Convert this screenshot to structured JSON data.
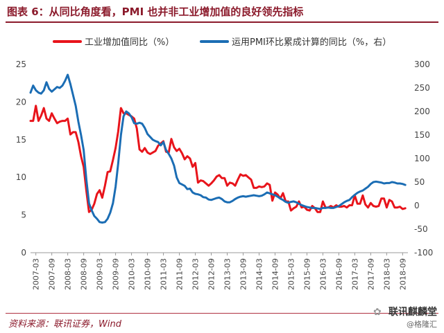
{
  "title": "图表 6：从同比角度看，PMI 也并非工业增加值的良好领先指标",
  "source": "资料来源：联讯证券，Wind",
  "watermark": {
    "main": "联讯麒麟堂",
    "sub": "@格隆汇"
  },
  "colors": {
    "title": "#8b1a2b",
    "series_red": "#e8141b",
    "series_blue": "#1b6db4"
  },
  "chart_data": {
    "type": "line",
    "title": "",
    "legend_position": "top",
    "grid": false,
    "x_ticks": [
      "2007-03",
      "2007-09",
      "2008-03",
      "2008-09",
      "2009-03",
      "2009-09",
      "2010-03",
      "2010-09",
      "2011-03",
      "2011-09",
      "2012-03",
      "2012-09",
      "2013-03",
      "2013-09",
      "2014-03",
      "2014-09",
      "2015-03",
      "2015-09",
      "2016-03",
      "2016-09",
      "2017-03",
      "2017-09",
      "2018-03",
      "2018-09"
    ],
    "y_left": {
      "range": [
        0,
        25
      ],
      "ticks": [
        "0",
        "5",
        "10",
        "15",
        "20",
        "25"
      ]
    },
    "y_right": {
      "range": [
        -100,
        300
      ],
      "ticks": [
        "-100",
        "-50",
        "0",
        "50",
        "100",
        "150",
        "200",
        "250",
        "300"
      ]
    },
    "series": [
      {
        "name": "工业增加值同比（%）",
        "axis": "left",
        "color": "#e8141b",
        "points": [
          [
            "2007-01",
            17.5
          ],
          [
            "2007-02",
            17.5
          ],
          [
            "2007-03",
            19.5
          ],
          [
            "2007-04",
            17.5
          ],
          [
            "2007-05",
            18.2
          ],
          [
            "2007-06",
            19.2
          ],
          [
            "2007-07",
            17.8
          ],
          [
            "2007-08",
            17.5
          ],
          [
            "2007-09",
            18.5
          ],
          [
            "2007-10",
            17.8
          ],
          [
            "2007-11",
            17.2
          ],
          [
            "2007-12",
            17.4
          ],
          [
            "2008-01",
            17.5
          ],
          [
            "2008-02",
            17.5
          ],
          [
            "2008-03",
            17.8
          ],
          [
            "2008-04",
            15.7
          ],
          [
            "2008-05",
            16.0
          ],
          [
            "2008-06",
            16.0
          ],
          [
            "2008-07",
            14.7
          ],
          [
            "2008-08",
            12.8
          ],
          [
            "2008-09",
            11.4
          ],
          [
            "2008-10",
            8.2
          ],
          [
            "2008-11",
            5.4
          ],
          [
            "2008-12",
            5.7
          ],
          [
            "2009-01",
            6.5
          ],
          [
            "2009-02",
            7.8
          ],
          [
            "2009-03",
            8.3
          ],
          [
            "2009-04",
            7.3
          ],
          [
            "2009-05",
            8.9
          ],
          [
            "2009-06",
            10.7
          ],
          [
            "2009-07",
            10.8
          ],
          [
            "2009-08",
            12.3
          ],
          [
            "2009-09",
            13.9
          ],
          [
            "2009-10",
            16.1
          ],
          [
            "2009-11",
            19.2
          ],
          [
            "2009-12",
            18.5
          ],
          [
            "2010-01",
            18.5
          ],
          [
            "2010-02",
            18.3
          ],
          [
            "2010-03",
            18.1
          ],
          [
            "2010-04",
            17.8
          ],
          [
            "2010-05",
            16.5
          ],
          [
            "2010-06",
            13.7
          ],
          [
            "2010-07",
            13.4
          ],
          [
            "2010-08",
            13.9
          ],
          [
            "2010-09",
            13.3
          ],
          [
            "2010-10",
            13.1
          ],
          [
            "2010-11",
            13.3
          ],
          [
            "2010-12",
            13.5
          ],
          [
            "2011-01",
            14.2
          ],
          [
            "2011-02",
            14.5
          ],
          [
            "2011-03",
            14.8
          ],
          [
            "2011-04",
            13.4
          ],
          [
            "2011-05",
            13.3
          ],
          [
            "2011-06",
            15.1
          ],
          [
            "2011-07",
            14.0
          ],
          [
            "2011-08",
            13.5
          ],
          [
            "2011-09",
            13.8
          ],
          [
            "2011-10",
            13.2
          ],
          [
            "2011-11",
            12.4
          ],
          [
            "2011-12",
            12.8
          ],
          [
            "2012-01",
            12.5
          ],
          [
            "2012-02",
            11.4
          ],
          [
            "2012-03",
            11.9
          ],
          [
            "2012-04",
            9.3
          ],
          [
            "2012-05",
            9.6
          ],
          [
            "2012-06",
            9.5
          ],
          [
            "2012-07",
            9.2
          ],
          [
            "2012-08",
            8.9
          ],
          [
            "2012-09",
            9.2
          ],
          [
            "2012-10",
            9.6
          ],
          [
            "2012-11",
            10.1
          ],
          [
            "2012-12",
            10.3
          ],
          [
            "2013-01",
            9.9
          ],
          [
            "2013-02",
            9.9
          ],
          [
            "2013-03",
            8.9
          ],
          [
            "2013-04",
            9.3
          ],
          [
            "2013-05",
            9.2
          ],
          [
            "2013-06",
            8.9
          ],
          [
            "2013-07",
            9.7
          ],
          [
            "2013-08",
            10.4
          ],
          [
            "2013-09",
            10.2
          ],
          [
            "2013-10",
            10.3
          ],
          [
            "2013-11",
            10.0
          ],
          [
            "2013-12",
            9.7
          ],
          [
            "2014-01",
            8.6
          ],
          [
            "2014-02",
            8.6
          ],
          [
            "2014-03",
            8.8
          ],
          [
            "2014-04",
            8.7
          ],
          [
            "2014-05",
            8.8
          ],
          [
            "2014-06",
            9.2
          ],
          [
            "2014-07",
            9.0
          ],
          [
            "2014-08",
            6.9
          ],
          [
            "2014-09",
            8.0
          ],
          [
            "2014-10",
            7.7
          ],
          [
            "2014-11",
            7.2
          ],
          [
            "2014-12",
            7.9
          ],
          [
            "2015-01",
            6.8
          ],
          [
            "2015-02",
            6.8
          ],
          [
            "2015-03",
            5.6
          ],
          [
            "2015-04",
            5.9
          ],
          [
            "2015-05",
            6.1
          ],
          [
            "2015-06",
            6.8
          ],
          [
            "2015-07",
            6.0
          ],
          [
            "2015-08",
            6.1
          ],
          [
            "2015-09",
            5.7
          ],
          [
            "2015-10",
            5.6
          ],
          [
            "2015-11",
            6.2
          ],
          [
            "2015-12",
            5.9
          ],
          [
            "2016-01",
            5.4
          ],
          [
            "2016-02",
            5.4
          ],
          [
            "2016-03",
            6.8
          ],
          [
            "2016-04",
            6.0
          ],
          [
            "2016-05",
            6.0
          ],
          [
            "2016-06",
            6.2
          ],
          [
            "2016-07",
            6.0
          ],
          [
            "2016-08",
            6.3
          ],
          [
            "2016-09",
            6.1
          ],
          [
            "2016-10",
            6.1
          ],
          [
            "2016-11",
            6.2
          ],
          [
            "2016-12",
            6.0
          ],
          [
            "2017-01",
            6.3
          ],
          [
            "2017-02",
            6.3
          ],
          [
            "2017-03",
            7.6
          ],
          [
            "2017-04",
            6.5
          ],
          [
            "2017-05",
            6.5
          ],
          [
            "2017-06",
            7.6
          ],
          [
            "2017-07",
            6.4
          ],
          [
            "2017-08",
            6.0
          ],
          [
            "2017-09",
            6.6
          ],
          [
            "2017-10",
            6.2
          ],
          [
            "2017-11",
            6.1
          ],
          [
            "2017-12",
            6.2
          ],
          [
            "2018-01",
            7.2
          ],
          [
            "2018-02",
            7.2
          ],
          [
            "2018-03",
            6.0
          ],
          [
            "2018-04",
            7.0
          ],
          [
            "2018-05",
            6.8
          ],
          [
            "2018-06",
            6.0
          ],
          [
            "2018-07",
            6.0
          ],
          [
            "2018-08",
            6.1
          ],
          [
            "2018-09",
            5.8
          ],
          [
            "2018-10",
            5.9
          ]
        ]
      },
      {
        "name": "运用PMI环比累成计算的同比（%，右）",
        "axis": "right",
        "color": "#1b6db4",
        "points": [
          [
            "2007-01",
            240
          ],
          [
            "2007-02",
            255
          ],
          [
            "2007-03",
            245
          ],
          [
            "2007-04",
            240
          ],
          [
            "2007-05",
            238
          ],
          [
            "2007-06",
            245
          ],
          [
            "2007-07",
            262
          ],
          [
            "2007-08",
            248
          ],
          [
            "2007-09",
            242
          ],
          [
            "2007-10",
            247
          ],
          [
            "2007-11",
            252
          ],
          [
            "2007-12",
            250
          ],
          [
            "2008-01",
            255
          ],
          [
            "2008-02",
            265
          ],
          [
            "2008-03",
            278
          ],
          [
            "2008-04",
            258
          ],
          [
            "2008-05",
            235
          ],
          [
            "2008-06",
            212
          ],
          [
            "2008-07",
            178
          ],
          [
            "2008-08",
            150
          ],
          [
            "2008-09",
            118
          ],
          [
            "2008-10",
            55
          ],
          [
            "2008-11",
            5
          ],
          [
            "2008-12",
            -10
          ],
          [
            "2009-01",
            -22
          ],
          [
            "2009-02",
            -28
          ],
          [
            "2009-03",
            -35
          ],
          [
            "2009-04",
            -36
          ],
          [
            "2009-05",
            -35
          ],
          [
            "2009-06",
            -28
          ],
          [
            "2009-07",
            -15
          ],
          [
            "2009-08",
            5
          ],
          [
            "2009-09",
            40
          ],
          [
            "2009-10",
            90
          ],
          [
            "2009-11",
            150
          ],
          [
            "2009-12",
            190
          ],
          [
            "2010-01",
            200
          ],
          [
            "2010-02",
            196
          ],
          [
            "2010-03",
            188
          ],
          [
            "2010-04",
            175
          ],
          [
            "2010-05",
            174
          ],
          [
            "2010-06",
            176
          ],
          [
            "2010-07",
            174
          ],
          [
            "2010-08",
            165
          ],
          [
            "2010-09",
            152
          ],
          [
            "2010-10",
            146
          ],
          [
            "2010-11",
            140
          ],
          [
            "2010-12",
            137
          ],
          [
            "2011-01",
            135
          ],
          [
            "2011-02",
            128
          ],
          [
            "2011-03",
            135
          ],
          [
            "2011-04",
            118
          ],
          [
            "2011-05",
            110
          ],
          [
            "2011-06",
            100
          ],
          [
            "2011-07",
            85
          ],
          [
            "2011-08",
            60
          ],
          [
            "2011-09",
            48
          ],
          [
            "2011-10",
            45
          ],
          [
            "2011-11",
            42
          ],
          [
            "2011-12",
            35
          ],
          [
            "2012-01",
            36
          ],
          [
            "2012-02",
            28
          ],
          [
            "2012-03",
            25
          ],
          [
            "2012-04",
            24
          ],
          [
            "2012-05",
            22
          ],
          [
            "2012-06",
            18
          ],
          [
            "2012-07",
            17
          ],
          [
            "2012-08",
            13
          ],
          [
            "2012-09",
            12
          ],
          [
            "2012-10",
            14
          ],
          [
            "2012-11",
            16
          ],
          [
            "2012-12",
            17
          ],
          [
            "2013-01",
            14
          ],
          [
            "2013-02",
            9
          ],
          [
            "2013-03",
            7
          ],
          [
            "2013-04",
            7
          ],
          [
            "2013-05",
            10
          ],
          [
            "2013-06",
            14
          ],
          [
            "2013-07",
            17
          ],
          [
            "2013-08",
            19
          ],
          [
            "2013-09",
            20
          ],
          [
            "2013-10",
            19
          ],
          [
            "2013-11",
            20
          ],
          [
            "2013-12",
            21
          ],
          [
            "2014-01",
            22
          ],
          [
            "2014-02",
            21
          ],
          [
            "2014-03",
            20
          ],
          [
            "2014-04",
            21
          ],
          [
            "2014-05",
            24
          ],
          [
            "2014-06",
            28
          ],
          [
            "2014-07",
            26
          ],
          [
            "2014-08",
            24
          ],
          [
            "2014-09",
            22
          ],
          [
            "2014-10",
            19
          ],
          [
            "2014-11",
            15
          ],
          [
            "2014-12",
            12
          ],
          [
            "2015-01",
            8
          ],
          [
            "2015-02",
            6
          ],
          [
            "2015-03",
            8
          ],
          [
            "2015-04",
            9
          ],
          [
            "2015-05",
            7
          ],
          [
            "2015-06",
            4
          ],
          [
            "2015-07",
            1
          ],
          [
            "2015-08",
            -1
          ],
          [
            "2015-09",
            -3
          ],
          [
            "2015-10",
            -4
          ],
          [
            "2015-11",
            -5
          ],
          [
            "2015-12",
            -5
          ],
          [
            "2016-01",
            -6
          ],
          [
            "2016-02",
            -7
          ],
          [
            "2016-03",
            -5
          ],
          [
            "2016-04",
            -5
          ],
          [
            "2016-05",
            -4
          ],
          [
            "2016-06",
            -5
          ],
          [
            "2016-07",
            -5
          ],
          [
            "2016-08",
            -3
          ],
          [
            "2016-09",
            -1
          ],
          [
            "2016-10",
            3
          ],
          [
            "2016-11",
            7
          ],
          [
            "2016-12",
            10
          ],
          [
            "2017-01",
            12
          ],
          [
            "2017-02",
            18
          ],
          [
            "2017-03",
            23
          ],
          [
            "2017-04",
            27
          ],
          [
            "2017-05",
            30
          ],
          [
            "2017-06",
            32
          ],
          [
            "2017-07",
            36
          ],
          [
            "2017-08",
            40
          ],
          [
            "2017-09",
            46
          ],
          [
            "2017-10",
            50
          ],
          [
            "2017-11",
            51
          ],
          [
            "2017-12",
            50
          ],
          [
            "2018-01",
            49
          ],
          [
            "2018-02",
            47
          ],
          [
            "2018-03",
            48
          ],
          [
            "2018-04",
            48
          ],
          [
            "2018-05",
            50
          ],
          [
            "2018-06",
            49
          ],
          [
            "2018-07",
            47
          ],
          [
            "2018-08",
            47
          ],
          [
            "2018-09",
            46
          ],
          [
            "2018-10",
            44
          ]
        ]
      }
    ]
  }
}
